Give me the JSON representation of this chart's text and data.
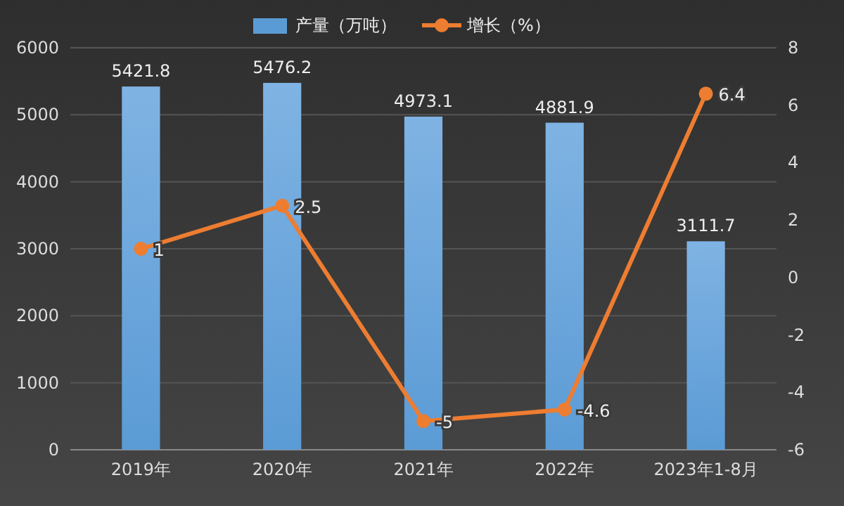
{
  "chart_data": {
    "type": "bar",
    "categories": [
      "2019年",
      "2020年",
      "2021年",
      "2022年",
      "2023年1-8月"
    ],
    "series": [
      {
        "name": "产量（万吨）",
        "color": "#5b9bd5",
        "values": [
          5421.8,
          5476.2,
          4973.1,
          4881.9,
          3111.7
        ]
      },
      {
        "name": "增长（%）",
        "type": "line",
        "axis": "y2",
        "color": "#ed7d31",
        "values": [
          1,
          2.5,
          -5,
          -4.6,
          6.4
        ]
      }
    ],
    "ylim": [
      0,
      6000
    ],
    "yticks": [
      0,
      1000,
      2000,
      3000,
      4000,
      5000,
      6000
    ],
    "y2lim": [
      -6,
      8
    ],
    "y2ticks": [
      -6,
      -4,
      -2,
      0,
      2,
      4,
      6,
      8
    ],
    "grid": "y",
    "legend": "top",
    "marker": "circle",
    "line_style": "solid",
    "data_labels": true
  }
}
